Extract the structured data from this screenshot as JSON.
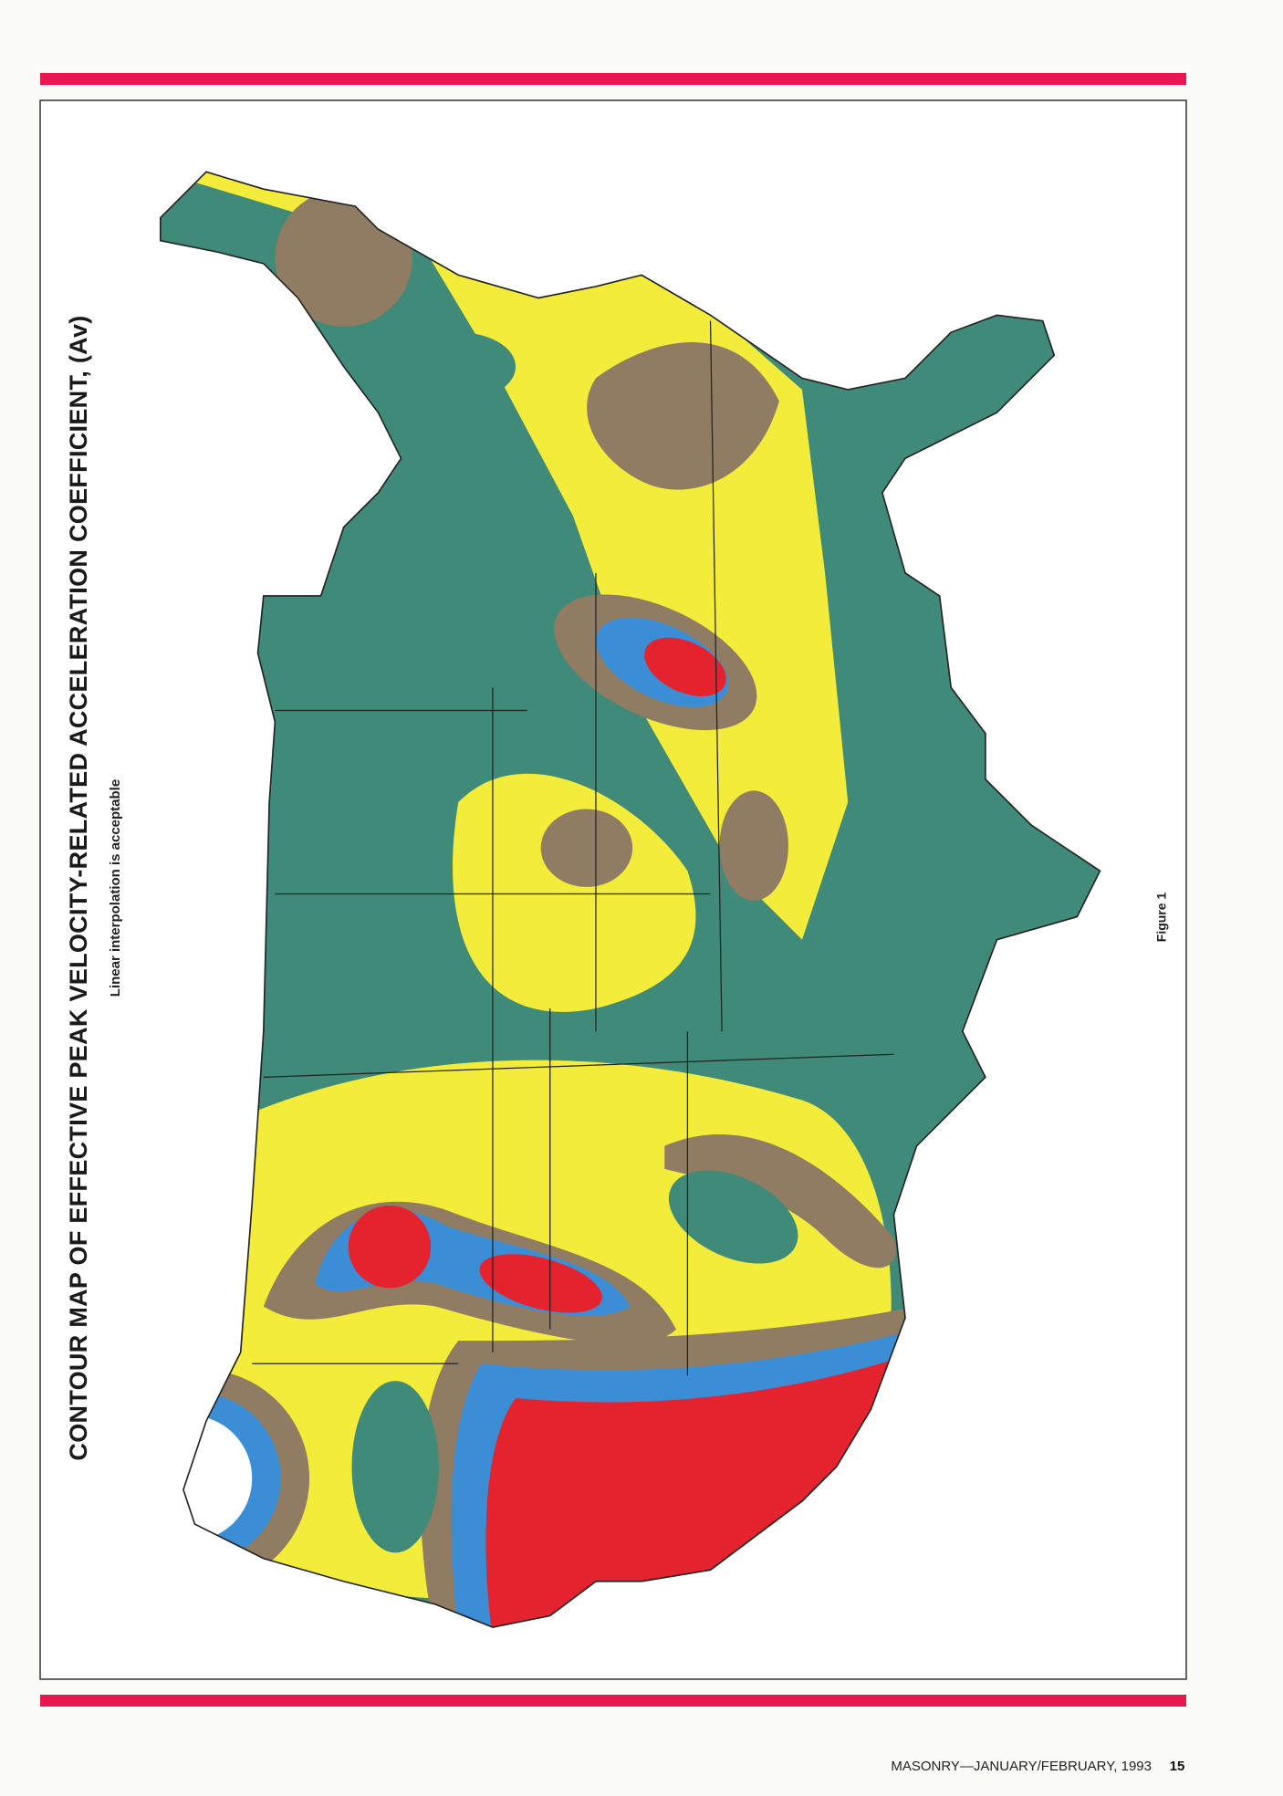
{
  "header": {
    "title": "CONTOUR MAP OF EFFECTIVE PEAK VELOCITY-RELATED ACCELERATION COEFFICIENT, (Av)",
    "subtitle": "Linear interpolation is acceptable"
  },
  "figure": {
    "label": "Figure 1"
  },
  "footer": {
    "publication": "MASONRY—JANUARY/FEBRUARY, 1993",
    "page_number": "15"
  }
}
